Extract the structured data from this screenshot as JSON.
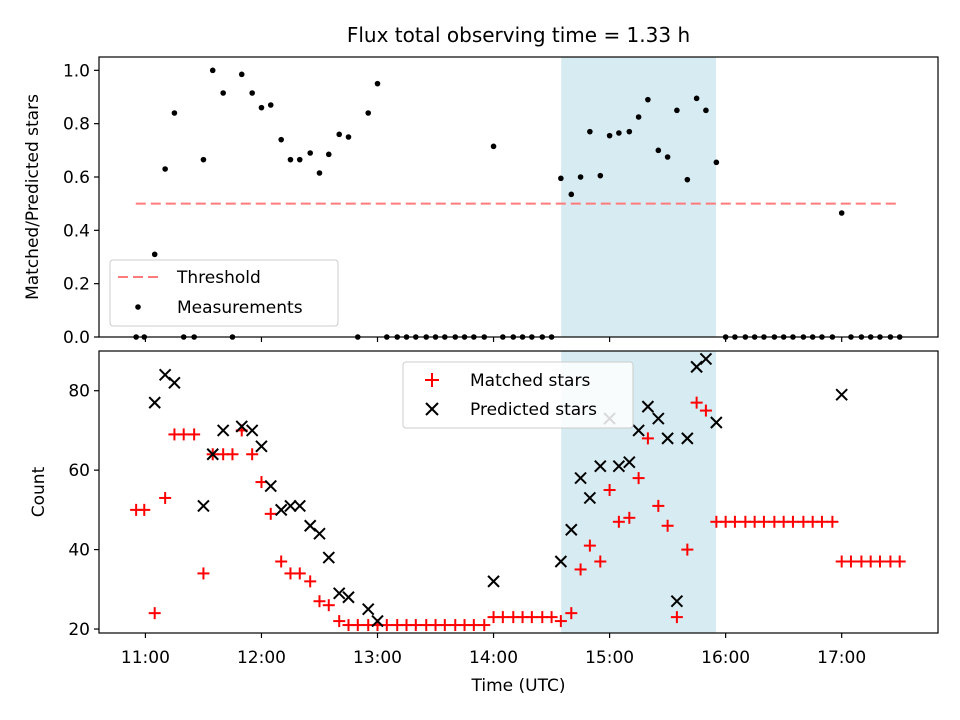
{
  "colors": {
    "threshold": "#ff7b7b",
    "measurement": "#000000",
    "matched": "#ff0000",
    "predicted": "#000000",
    "highlight": "#add8e6"
  },
  "chart_data": [
    {
      "type": "scatter",
      "title": "Flux total observing time = 1.33 h",
      "xlabel": "",
      "ylabel": "Matched/Predicted stars",
      "xlim": [
        10.6,
        17.83
      ],
      "ylim": [
        0,
        1.05
      ],
      "yticks": [
        0.0,
        0.2,
        0.4,
        0.6,
        0.8,
        1.0
      ],
      "ytick_labels": [
        "0.0",
        "0.2",
        "0.4",
        "0.6",
        "0.8",
        "1.0"
      ],
      "xticks": [
        11,
        12,
        13,
        14,
        15,
        16,
        17
      ],
      "highlight_span": [
        14.583,
        15.917
      ],
      "threshold": {
        "name": "Threshold",
        "y": 0.5,
        "x": [
          10.917,
          17.5
        ]
      },
      "legend": [
        "Threshold",
        "Measurements"
      ],
      "legend_location": "lower-left",
      "series": [
        {
          "name": "Measurements",
          "points": [
            [
              10.92,
              0
            ],
            [
              10.99,
              0
            ],
            [
              11.08,
              0.31
            ],
            [
              11.17,
              0.63
            ],
            [
              11.25,
              0.84
            ],
            [
              11.33,
              0
            ],
            [
              11.42,
              0
            ],
            [
              11.5,
              0.665
            ],
            [
              11.58,
              1.0
            ],
            [
              11.67,
              0.915
            ],
            [
              11.75,
              0
            ],
            [
              11.83,
              0.985
            ],
            [
              11.92,
              0.915
            ],
            [
              12.0,
              0.86
            ],
            [
              12.08,
              0.87
            ],
            [
              12.17,
              0.74
            ],
            [
              12.25,
              0.665
            ],
            [
              12.33,
              0.665
            ],
            [
              12.42,
              0.69
            ],
            [
              12.5,
              0.615
            ],
            [
              12.58,
              0.685
            ],
            [
              12.67,
              0.76
            ],
            [
              12.75,
              0.75
            ],
            [
              12.83,
              0
            ],
            [
              12.92,
              0.84
            ],
            [
              13.0,
              0.95
            ],
            [
              13.08,
              0
            ],
            [
              13.17,
              0
            ],
            [
              13.25,
              0
            ],
            [
              13.33,
              0
            ],
            [
              13.42,
              0
            ],
            [
              13.5,
              0
            ],
            [
              13.58,
              0
            ],
            [
              13.67,
              0
            ],
            [
              13.75,
              0
            ],
            [
              13.83,
              0
            ],
            [
              13.92,
              0
            ],
            [
              14.0,
              0.715
            ],
            [
              14.08,
              0
            ],
            [
              14.17,
              0
            ],
            [
              14.25,
              0
            ],
            [
              14.33,
              0
            ],
            [
              14.42,
              0
            ],
            [
              14.5,
              0
            ],
            [
              14.58,
              0.595
            ],
            [
              14.67,
              0.535
            ],
            [
              14.75,
              0.6
            ],
            [
              14.83,
              0.77
            ],
            [
              14.92,
              0.605
            ],
            [
              15.0,
              0.755
            ],
            [
              15.08,
              0.765
            ],
            [
              15.17,
              0.77
            ],
            [
              15.25,
              0.825
            ],
            [
              15.33,
              0.89
            ],
            [
              15.42,
              0.7
            ],
            [
              15.5,
              0.675
            ],
            [
              15.58,
              0.85
            ],
            [
              15.67,
              0.59
            ],
            [
              15.75,
              0.895
            ],
            [
              15.83,
              0.85
            ],
            [
              15.92,
              0.655
            ],
            [
              16.0,
              0
            ],
            [
              16.08,
              0
            ],
            [
              16.17,
              0
            ],
            [
              16.25,
              0
            ],
            [
              16.33,
              0
            ],
            [
              16.42,
              0
            ],
            [
              16.5,
              0
            ],
            [
              16.58,
              0
            ],
            [
              16.67,
              0
            ],
            [
              16.75,
              0
            ],
            [
              16.83,
              0
            ],
            [
              16.92,
              0
            ],
            [
              17.0,
              0.465
            ],
            [
              17.08,
              0
            ],
            [
              17.17,
              0
            ],
            [
              17.25,
              0
            ],
            [
              17.33,
              0
            ],
            [
              17.42,
              0
            ],
            [
              17.5,
              0
            ]
          ]
        }
      ]
    },
    {
      "type": "scatter",
      "title": "",
      "xlabel": "Time (UTC)",
      "ylabel": "Count",
      "xlim": [
        10.6,
        17.83
      ],
      "ylim": [
        19,
        90
      ],
      "yticks": [
        20,
        40,
        60,
        80
      ],
      "ytick_labels": [
        "20",
        "40",
        "60",
        "80"
      ],
      "xticks": [
        11,
        12,
        13,
        14,
        15,
        16,
        17
      ],
      "xtick_labels": [
        "11:00",
        "12:00",
        "13:00",
        "14:00",
        "15:00",
        "16:00",
        "17:00"
      ],
      "highlight_span": [
        14.583,
        15.917
      ],
      "legend": [
        "Matched stars",
        "Predicted stars"
      ],
      "legend_location": "upper-center",
      "series": [
        {
          "name": "Matched stars",
          "marker": "plus",
          "points": [
            [
              10.92,
              50
            ],
            [
              10.99,
              50
            ],
            [
              11.08,
              24
            ],
            [
              11.17,
              53
            ],
            [
              11.25,
              69
            ],
            [
              11.33,
              69
            ],
            [
              11.42,
              69
            ],
            [
              11.5,
              34
            ],
            [
              11.58,
              64
            ],
            [
              11.67,
              64
            ],
            [
              11.75,
              64
            ],
            [
              11.83,
              70
            ],
            [
              11.92,
              64
            ],
            [
              12.0,
              57
            ],
            [
              12.08,
              49
            ],
            [
              12.17,
              37
            ],
            [
              12.25,
              34
            ],
            [
              12.33,
              34
            ],
            [
              12.42,
              32
            ],
            [
              12.5,
              27
            ],
            [
              12.58,
              26
            ],
            [
              12.67,
              22
            ],
            [
              12.75,
              21
            ],
            [
              12.83,
              21
            ],
            [
              12.92,
              21
            ],
            [
              13.0,
              21
            ],
            [
              13.08,
              21
            ],
            [
              13.17,
              21
            ],
            [
              13.25,
              21
            ],
            [
              13.33,
              21
            ],
            [
              13.42,
              21
            ],
            [
              13.5,
              21
            ],
            [
              13.58,
              21
            ],
            [
              13.67,
              21
            ],
            [
              13.75,
              21
            ],
            [
              13.83,
              21
            ],
            [
              13.92,
              21
            ],
            [
              14.0,
              23
            ],
            [
              14.08,
              23
            ],
            [
              14.17,
              23
            ],
            [
              14.25,
              23
            ],
            [
              14.33,
              23
            ],
            [
              14.42,
              23
            ],
            [
              14.5,
              23
            ],
            [
              14.58,
              22
            ],
            [
              14.67,
              24
            ],
            [
              14.75,
              35
            ],
            [
              14.83,
              41
            ],
            [
              14.92,
              37
            ],
            [
              15.0,
              55
            ],
            [
              15.08,
              47
            ],
            [
              15.17,
              48
            ],
            [
              15.25,
              58
            ],
            [
              15.33,
              68
            ],
            [
              15.42,
              51
            ],
            [
              15.5,
              46
            ],
            [
              15.58,
              23
            ],
            [
              15.67,
              40
            ],
            [
              15.75,
              77
            ],
            [
              15.83,
              75
            ],
            [
              15.92,
              47
            ],
            [
              16.0,
              47
            ],
            [
              16.08,
              47
            ],
            [
              16.17,
              47
            ],
            [
              16.25,
              47
            ],
            [
              16.33,
              47
            ],
            [
              16.42,
              47
            ],
            [
              16.5,
              47
            ],
            [
              16.58,
              47
            ],
            [
              16.67,
              47
            ],
            [
              16.75,
              47
            ],
            [
              16.83,
              47
            ],
            [
              16.92,
              47
            ],
            [
              17.0,
              37
            ],
            [
              17.08,
              37
            ],
            [
              17.17,
              37
            ],
            [
              17.25,
              37
            ],
            [
              17.33,
              37
            ],
            [
              17.42,
              37
            ],
            [
              17.5,
              37
            ]
          ]
        },
        {
          "name": "Predicted stars",
          "marker": "x",
          "points": [
            [
              11.08,
              77
            ],
            [
              11.17,
              84
            ],
            [
              11.25,
              82
            ],
            [
              11.5,
              51
            ],
            [
              11.58,
              64
            ],
            [
              11.67,
              70
            ],
            [
              11.83,
              71
            ],
            [
              11.92,
              70
            ],
            [
              12.0,
              66
            ],
            [
              12.08,
              56
            ],
            [
              12.17,
              50
            ],
            [
              12.25,
              51
            ],
            [
              12.33,
              51
            ],
            [
              12.42,
              46
            ],
            [
              12.5,
              44
            ],
            [
              12.58,
              38
            ],
            [
              12.67,
              29
            ],
            [
              12.75,
              28
            ],
            [
              12.92,
              25
            ],
            [
              13.0,
              22
            ],
            [
              14.0,
              32
            ],
            [
              14.58,
              37
            ],
            [
              14.67,
              45
            ],
            [
              14.75,
              58
            ],
            [
              14.83,
              53
            ],
            [
              14.92,
              61
            ],
            [
              15.0,
              73
            ],
            [
              15.08,
              61
            ],
            [
              15.17,
              62
            ],
            [
              15.25,
              70
            ],
            [
              15.33,
              76
            ],
            [
              15.42,
              73
            ],
            [
              15.5,
              68
            ],
            [
              15.58,
              27
            ],
            [
              15.67,
              68
            ],
            [
              15.75,
              86
            ],
            [
              15.83,
              88
            ],
            [
              15.92,
              72
            ],
            [
              17.0,
              79
            ]
          ]
        }
      ]
    }
  ]
}
